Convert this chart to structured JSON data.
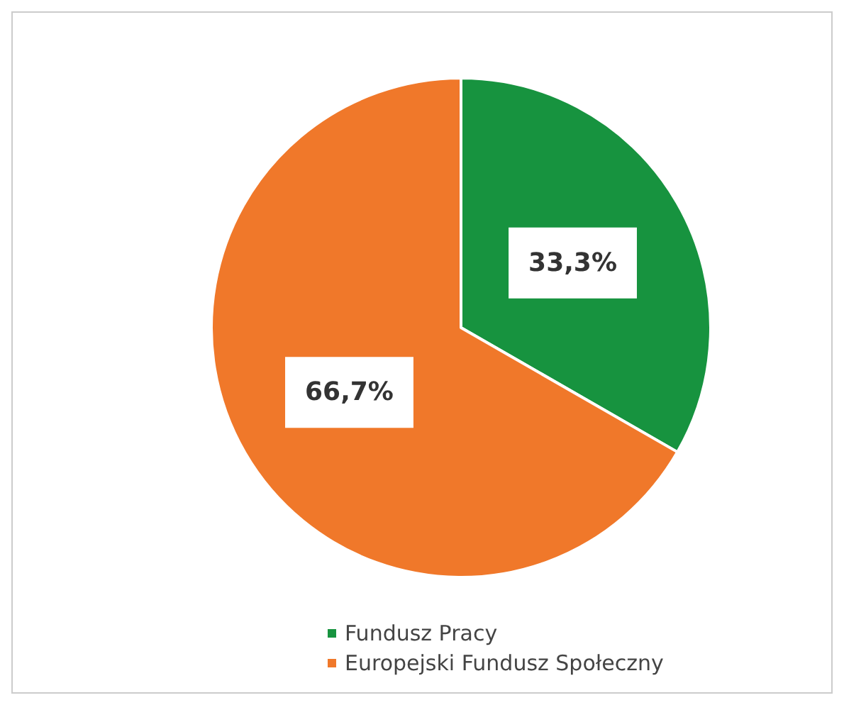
{
  "chart_data": {
    "type": "pie",
    "categories": [
      "Fundusz Pracy",
      "Europejski Fundusz Społeczny"
    ],
    "values": [
      33.3,
      66.7
    ],
    "colors": [
      "#17933f",
      "#f0782a"
    ],
    "value_labels": [
      "33,3%",
      "66,7%"
    ],
    "legend": "bottom"
  }
}
